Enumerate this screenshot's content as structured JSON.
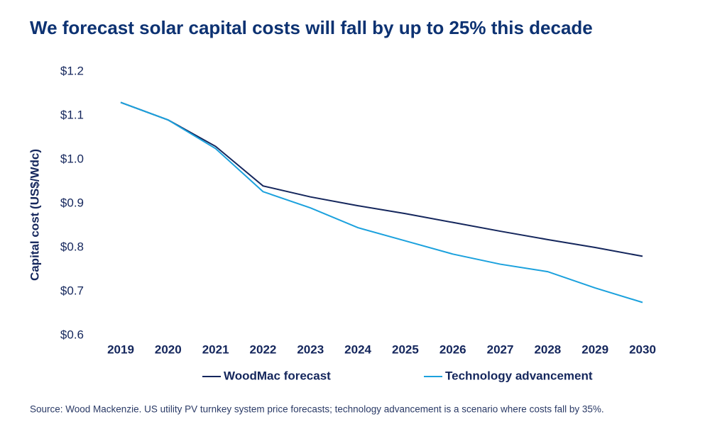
{
  "chart_data": {
    "type": "line",
    "title": "We forecast solar capital costs will fall by up to 25% this decade",
    "y_label": "Capital cost (US$/Wdc)",
    "source": "Source: Wood Mackenzie. US utility PV turnkey system price forecasts; technology advancement is a scenario where costs fall by 35%.",
    "categories": [
      "2019",
      "2020",
      "2021",
      "2022",
      "2023",
      "2024",
      "2025",
      "2026",
      "2027",
      "2028",
      "2029",
      "2030"
    ],
    "series": [
      {
        "name": "WoodMac forecast",
        "color": "#14265c",
        "values": [
          1.13,
          1.09,
          1.03,
          0.94,
          0.915,
          0.895,
          0.877,
          0.857,
          0.837,
          0.818,
          0.8,
          0.78
        ]
      },
      {
        "name": "Technology advancement",
        "color": "#1ba1dd",
        "values": [
          1.13,
          1.09,
          1.025,
          0.927,
          0.89,
          0.845,
          0.815,
          0.785,
          0.762,
          0.745,
          0.708,
          0.675
        ]
      }
    ],
    "ylim": [
      0.6,
      1.2
    ],
    "yticks": [
      {
        "value": 0.6,
        "label": "$0.6"
      },
      {
        "value": 0.7,
        "label": "$0.7"
      },
      {
        "value": 0.8,
        "label": "$0.8"
      },
      {
        "value": 0.9,
        "label": "$0.9"
      },
      {
        "value": 1.0,
        "label": "$1.0"
      },
      {
        "value": 1.1,
        "label": "$1.1"
      },
      {
        "value": 1.2,
        "label": "$1.2"
      }
    ],
    "grid": false,
    "legend": "bottom"
  }
}
